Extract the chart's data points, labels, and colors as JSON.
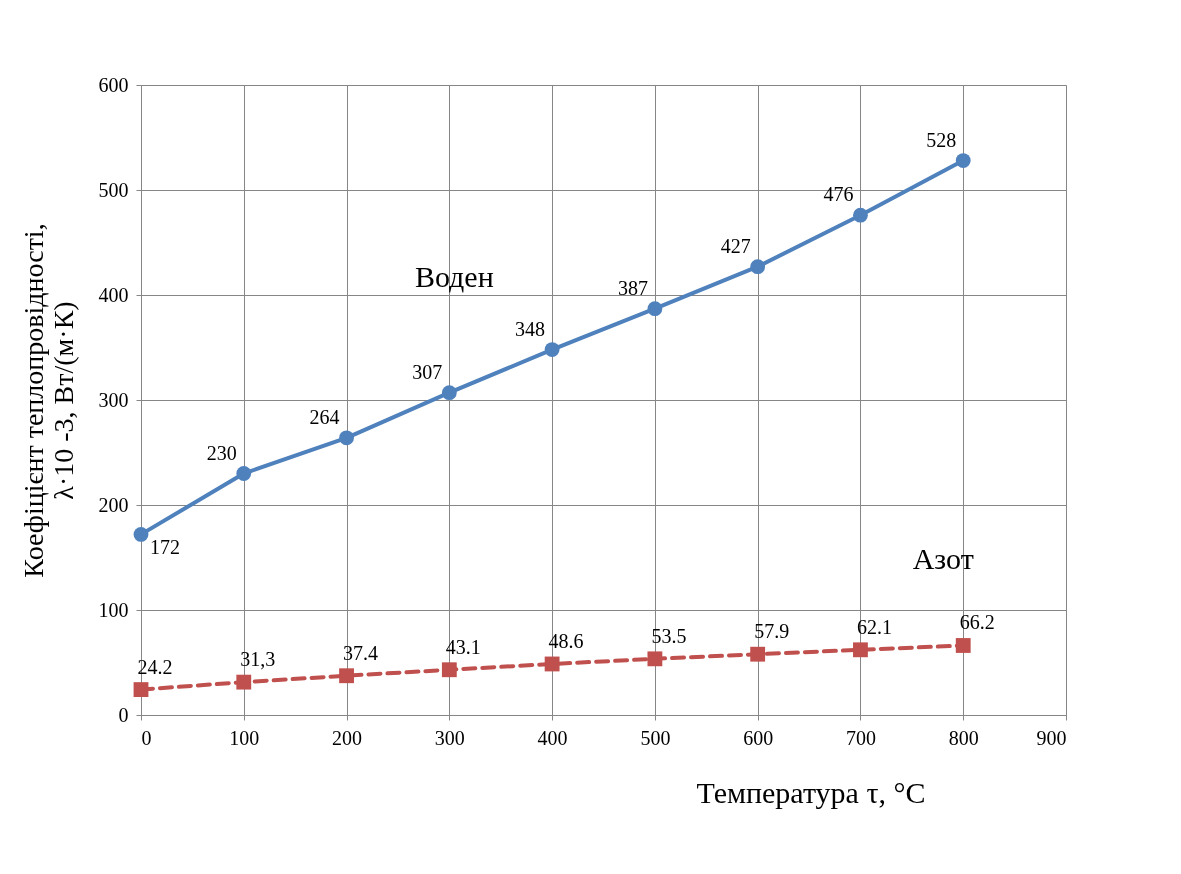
{
  "chart_data": {
    "type": "line",
    "xlabel": "Температура τ, °С",
    "ylabel": "Коефіцієнт теплопровідності,\nλ·10 -3, Вт/(м·К)",
    "x": [
      0,
      100,
      200,
      300,
      400,
      500,
      600,
      700,
      800
    ],
    "series": [
      {
        "name": "Воден",
        "color": "#4f81bd",
        "marker": "circle",
        "line_style": "solid",
        "values": [
          172,
          230,
          264,
          307,
          348,
          387,
          427,
          476,
          528
        ],
        "value_labels": [
          "172",
          "230",
          "264",
          "307",
          "348",
          "387",
          "427",
          "476",
          "528"
        ]
      },
      {
        "name": "Азот",
        "color": "#c0504d",
        "marker": "square",
        "line_style": "dashed",
        "values": [
          24.2,
          31.3,
          37.4,
          43.1,
          48.6,
          53.5,
          57.9,
          62.1,
          66.2
        ],
        "value_labels": [
          "24.2",
          "31,3",
          "37.4",
          "43.1",
          "48.6",
          "53.5",
          "57.9",
          "62.1",
          "66.2"
        ]
      }
    ],
    "xlim": [
      0,
      900
    ],
    "xticks": [
      0,
      100,
      200,
      300,
      400,
      500,
      600,
      700,
      800,
      900
    ],
    "ylim": [
      0,
      600
    ],
    "yticks": [
      0,
      100,
      200,
      300,
      400,
      500,
      600
    ],
    "grid": true
  }
}
